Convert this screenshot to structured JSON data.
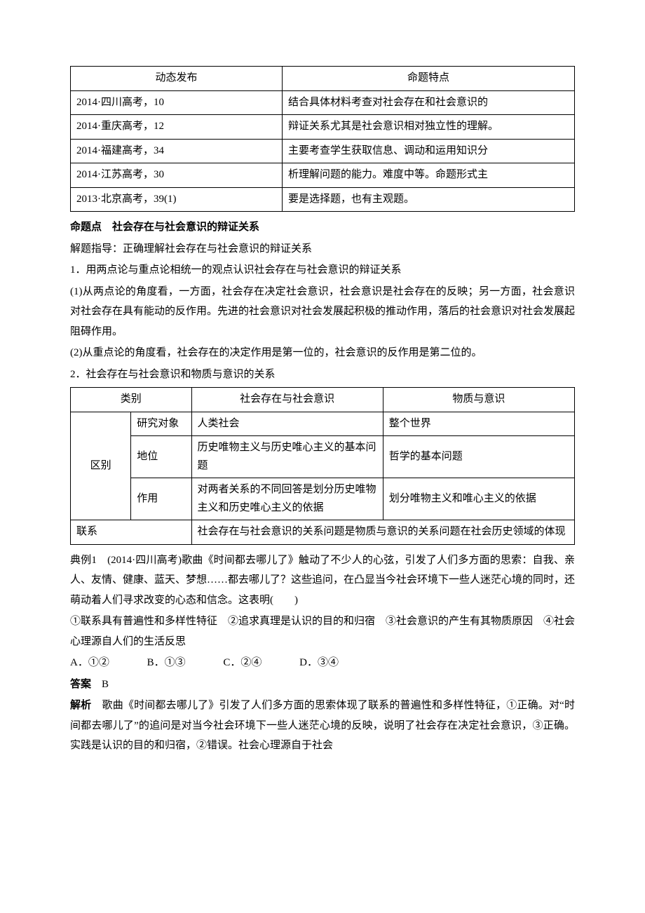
{
  "table1": {
    "header": {
      "left": "动态发布",
      "right": "命题特点"
    },
    "leftRows": [
      "2014·四川高考，10",
      "2014·重庆高考，12",
      "2014·福建高考，34",
      "2014·江苏高考，30",
      "2013·北京高考，39(1)"
    ],
    "rightRows": [
      "结合具体材料考查对社会存在和社会意识的",
      "辩证关系尤其是社会意识相对独立性的理解。",
      "主要考查学生获取信息、调动和运用知识分",
      "析理解问题的能力。难度中等。命题形式主",
      "要是选择题，也有主观题。"
    ]
  },
  "heading1": "命题点　社会存在与社会意识的辩证关系",
  "intro": "解题指导：正确理解社会存在与社会意识的辩证关系",
  "point1_title": "1．用两点论与重点论相统一的观点认识社会存在与社会意识的辩证关系",
  "point1a": "(1)从两点论的角度看，一方面，社会存在决定社会意识，社会意识是社会存在的反映；另一方面，社会意识对社会存在具有能动的反作用。先进的社会意识对社会发展起积极的推动作用，落后的社会意识对社会发展起阻碍作用。",
  "point1b": "(2)从重点论的角度看，社会存在的决定作用是第一位的，社会意识的反作用是第二位的。",
  "point2_title": "2．社会存在与社会意识和物质与意识的关系",
  "table2": {
    "header": {
      "cat": "类别",
      "colA": "社会存在与社会意识",
      "colB": "物质与意识"
    },
    "rowGroup": "区别",
    "rows": [
      {
        "sub": "研究对象",
        "a": "人类社会",
        "b": "整个世界"
      },
      {
        "sub": "地位",
        "a": "历史唯物主义与历史唯心主义的基本问题",
        "b": "哲学的基本问题"
      },
      {
        "sub": "作用",
        "a": "对两者关系的不同回答是划分历史唯物主义和历史唯心主义的依据",
        "b": "划分唯物主义和唯心主义的依据"
      }
    ],
    "linkLabel": "联系",
    "linkText": "社会存在与社会意识的关系问题是物质与意识的关系问题在社会历史领域的体现"
  },
  "example_label": "典例1",
  "example_text": "　(2014·四川高考)歌曲《时间都去哪儿了》触动了不少人的心弦，引发了人们多方面的思索：自我、亲人、友情、健康、蓝天、梦想……都去哪儿了？这些追问，在凸显当今社会环境下一些人迷茫心境的同时，还萌动着人们寻求改变的心态和信念。这表明(　　)",
  "example_stmts": "①联系具有普遍性和多样性特征　②追求真理是认识的目的和归宿　③社会意识的产生有其物质原因　④社会心理源自人们的生活反思",
  "options": {
    "A": "A．①②",
    "B": "B．①③",
    "C": "C．②④",
    "D": "D．③④"
  },
  "answer_label": "答案",
  "answer": "　B",
  "analysis_label": "解析",
  "analysis": "　歌曲《时间都去哪儿了》引发了人们多方面的思索体现了联系的普遍性和多样性特征，①正确。对“时间都去哪儿了”的追问是对当今社会环境下一些人迷茫心境的反映，说明了社会存在决定社会意识，③正确。实践是认识的目的和归宿，②错误。社会心理源自于社会"
}
